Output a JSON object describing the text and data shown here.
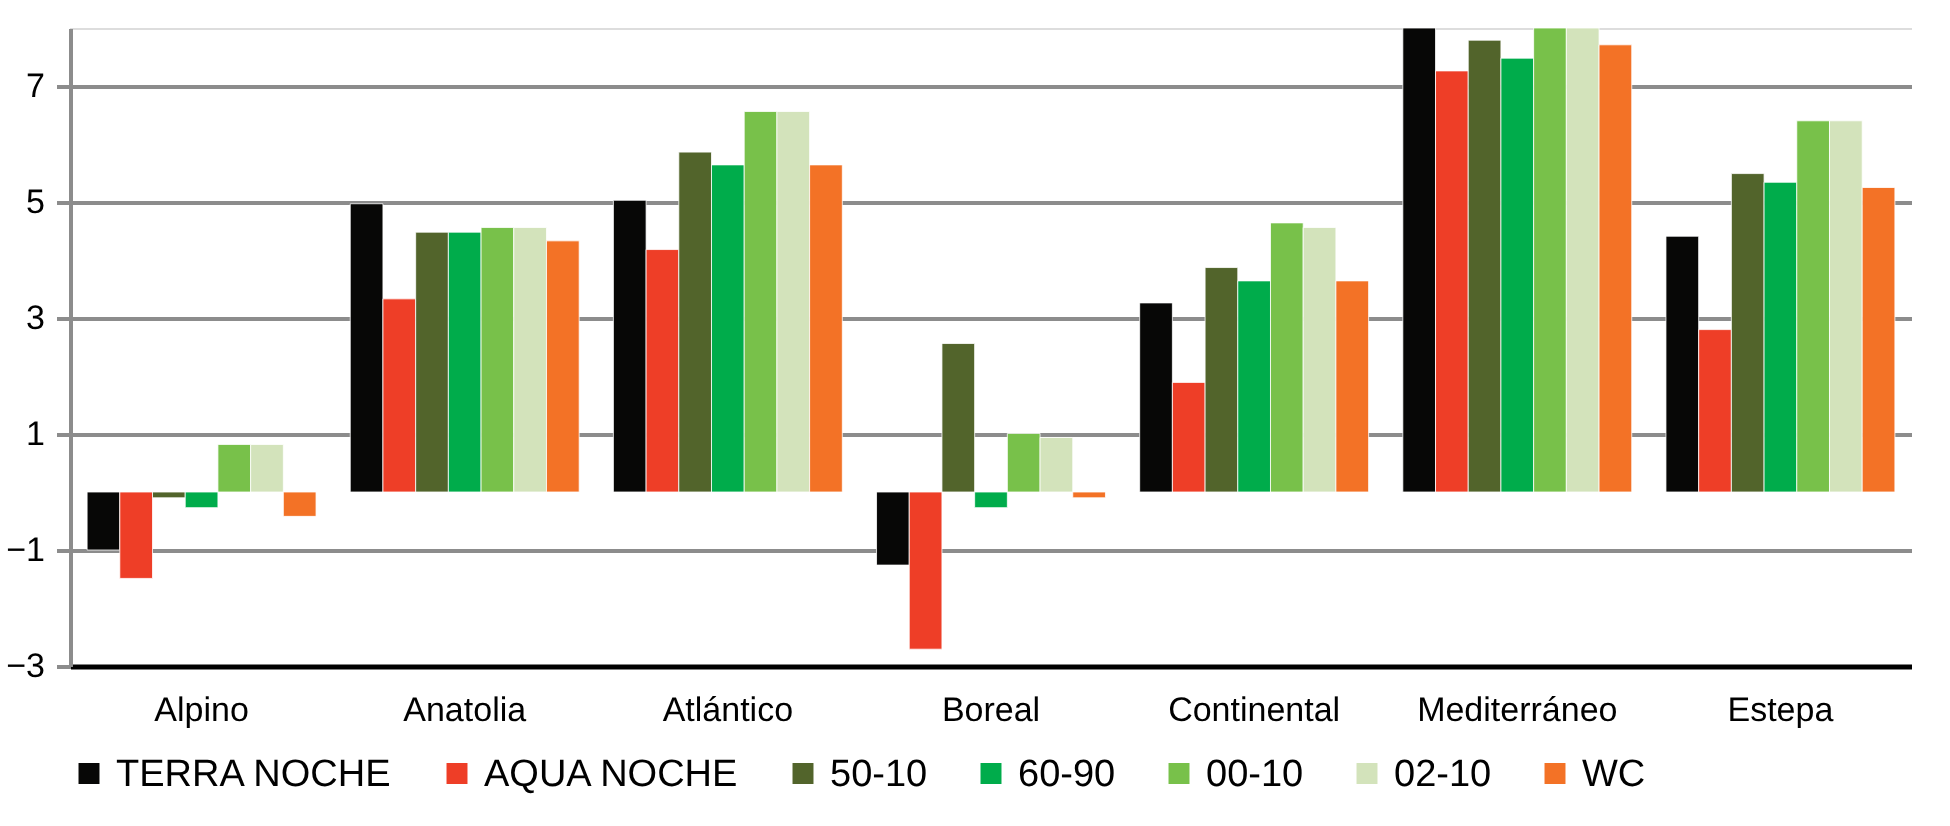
{
  "chart_data": {
    "type": "bar",
    "categories": [
      "Alpino",
      "Anatolia",
      "Atlántico",
      "Boreal",
      "Continental",
      "Mediterráneo",
      "Estepa"
    ],
    "series": [
      {
        "name": "TERRA NOCHE",
        "color": "#070706",
        "values": [
          -1.0,
          4.97,
          5.03,
          -1.26,
          3.26,
          8.0,
          4.41
        ]
      },
      {
        "name": "AQUA NOCHE",
        "color": "#ee3e27",
        "values": [
          -1.49,
          3.33,
          4.18,
          -2.71,
          1.89,
          7.26,
          2.8
        ]
      },
      {
        "name": "50-10",
        "color": "#52642b",
        "values": [
          -0.1,
          4.48,
          5.86,
          2.56,
          3.87,
          7.79,
          5.49
        ]
      },
      {
        "name": "60-90",
        "color": "#00ac4b",
        "values": [
          -0.27,
          4.48,
          5.64,
          -0.27,
          3.64,
          7.48,
          5.34
        ]
      },
      {
        "name": "00-10",
        "color": "#78c14a",
        "values": [
          0.82,
          4.56,
          6.56,
          1.01,
          4.64,
          8.0,
          6.4
        ]
      },
      {
        "name": "02-10",
        "color": "#d3e3bb",
        "values": [
          0.82,
          4.56,
          6.56,
          0.94,
          4.56,
          8.0,
          6.4
        ]
      },
      {
        "name": "WC",
        "color": "#f37226",
        "values": [
          -0.42,
          4.33,
          5.64,
          -0.1,
          3.64,
          7.71,
          5.25
        ]
      }
    ],
    "ylim": [
      -3,
      8
    ],
    "yticks": [
      -3,
      -1,
      1,
      3,
      5,
      7
    ],
    "grid": "y",
    "legend": "bottom"
  }
}
